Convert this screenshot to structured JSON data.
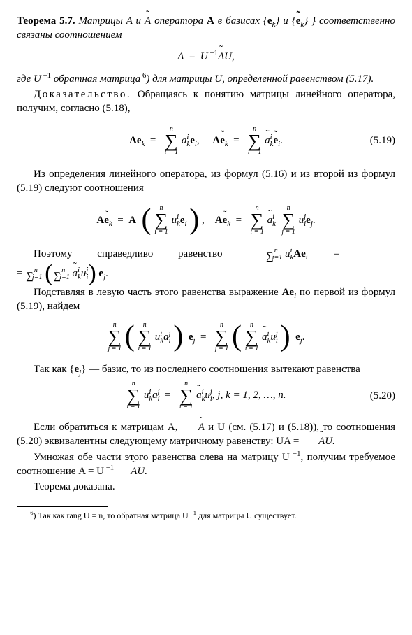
{
  "theorem": {
    "label": "Теорема 5.7.",
    "stmt1": "Матрицы A и",
    "Atilde": "A",
    "stmt2": " оператора ",
    "opA": "A",
    "stmt3": " в базисах {",
    "ek": "e",
    "ksub": "k",
    "stmt4": "} и {",
    "etk": "e",
    "stmt5": "} соответственно связаны соотношением"
  },
  "eq1": {
    "lhs": "A  =  U",
    "exp": "−1",
    "rhs": "U,",
    "mid": "A"
  },
  "para1a": "где U",
  "para1exp": "−1",
  "para1b": " обратная матрица",
  "fnref": "6",
  "para1c": ")  для матрицы U, определенной равенством",
  "para1d": " (5.17).",
  "proofhead": "Доказательство.",
  "para2": " Обращаясь к понятию матрицы линейного оператора, получим, согласно (5.18),",
  "eq519": {
    "num": "(5.19)"
  },
  "para3": "Из определения линейного оператора, из формул (5.16) и из второй из формул (5.19) следуют соотношения",
  "para4a": "Поэтому",
  "para4b": "справедливо",
  "para4c": "равенство",
  "para5": "Подставляя в левую часть этого равенства выражение ",
  "para5b": " по первой из формул (5.19), найдем",
  "para6a": "Так как {",
  "para6b": "} — базис, то из последнего соотношения вытекают равенства",
  "eq520": {
    "tail": ",    j, k  =  1, 2, …, n.",
    "num": "(5.20)"
  },
  "para7a": "Если обратиться к матрицам A, ",
  "para7b": " и U (см. (5.17) и (5.18)), то соотношения (5.20) эквивалентны следующему матричному равенству: UA  =  ",
  "para7c": "U.",
  "para8a": "Умножая обе части этого равенства слева на матрицу U",
  "para8b": ", получим требуемое соотношение A  =  U",
  "para8c": "U.",
  "para9": "Теорема доказана.",
  "footnote": {
    "ref": "6",
    "txt1": ") Так как rang U  =  n, то обратная матрица U",
    "exp": "−1",
    "txt2": " для матрицы U существует."
  }
}
